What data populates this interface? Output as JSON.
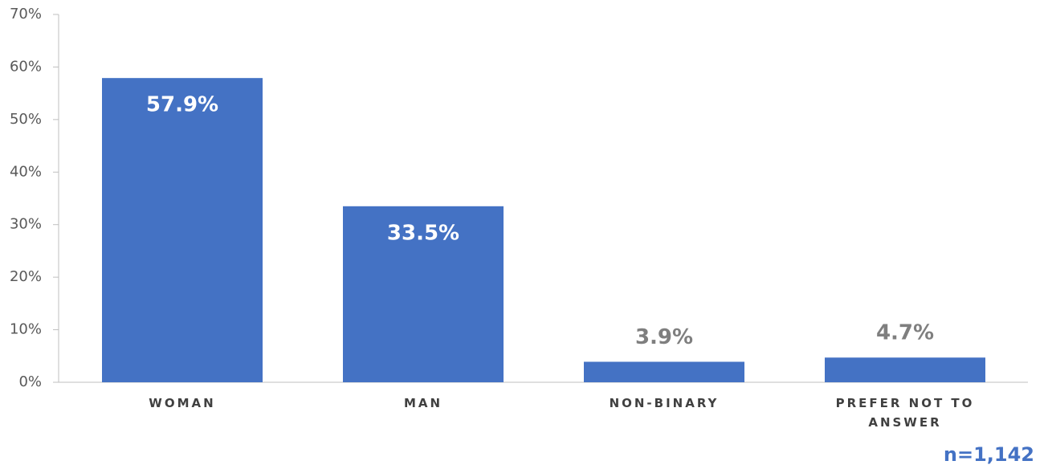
{
  "chart_data": {
    "type": "bar",
    "categories": [
      "WOMAN",
      "MAN",
      "NON-BINARY",
      "PREFER NOT TO ANSWER"
    ],
    "values": [
      57.9,
      33.5,
      3.9,
      4.7
    ],
    "value_labels": [
      "57.9%",
      "33.5%",
      "3.9%",
      "4.7%"
    ],
    "color": "#4472c4",
    "ylim": [
      0,
      70
    ],
    "yticks": [
      {
        "value": 0,
        "label": "0%"
      },
      {
        "value": 10,
        "label": "10%"
      },
      {
        "value": 20,
        "label": "20%"
      },
      {
        "value": 30,
        "label": "30%"
      },
      {
        "value": 40,
        "label": "40%"
      },
      {
        "value": 50,
        "label": "50%"
      },
      {
        "value": 60,
        "label": "60%"
      },
      {
        "value": 70,
        "label": "70%"
      }
    ],
    "annotation": "n=1,142"
  }
}
